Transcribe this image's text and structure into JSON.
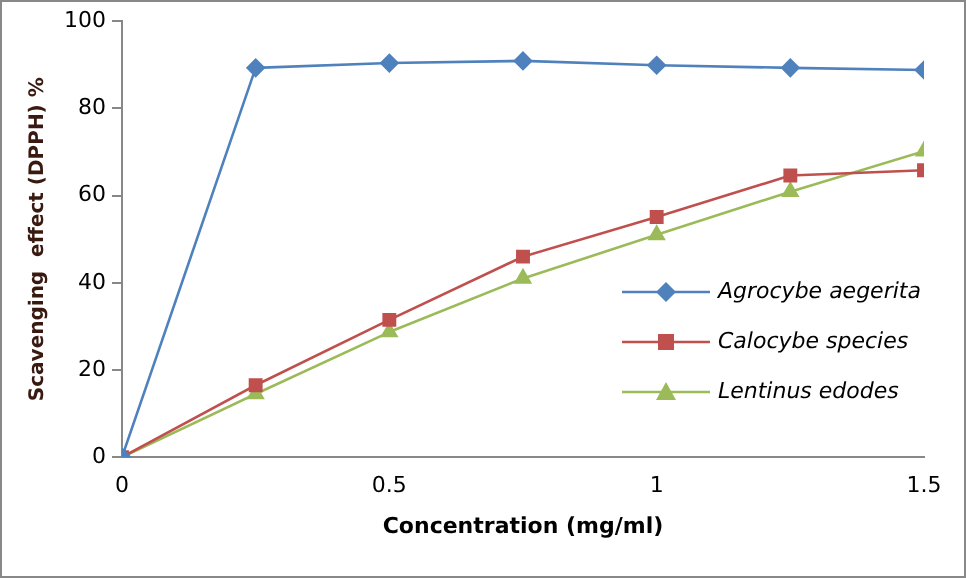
{
  "chart_data": {
    "type": "line",
    "xlabel": "Concentration (mg/ml)",
    "ylabel": "Scavenging  effect (DPPH) %",
    "x": [
      0,
      0.25,
      0.5,
      0.75,
      1,
      1.25,
      1.5
    ],
    "xlim": [
      0,
      1.5
    ],
    "xticks": [
      0,
      0.5,
      1,
      1.5
    ],
    "ylim": [
      0,
      100
    ],
    "yticks": [
      0,
      20,
      40,
      60,
      80,
      100
    ],
    "grid": false,
    "legend": "right",
    "series": [
      {
        "name": "Agrocybe aegerita",
        "color": "#4f81bd",
        "marker": "diamond",
        "values": [
          0,
          89.3,
          90.4,
          90.9,
          89.9,
          89.3,
          88.8
        ]
      },
      {
        "name": "Calocybe species",
        "color": "#c0504d",
        "marker": "square",
        "values": [
          0,
          16.5,
          31.5,
          46.0,
          55.1,
          64.6,
          65.8
        ]
      },
      {
        "name": "Lentinus edodes",
        "color": "#9bbb59",
        "marker": "triangle",
        "values": [
          0,
          14.5,
          28.7,
          41.0,
          51.0,
          60.9,
          70.2
        ]
      }
    ]
  }
}
